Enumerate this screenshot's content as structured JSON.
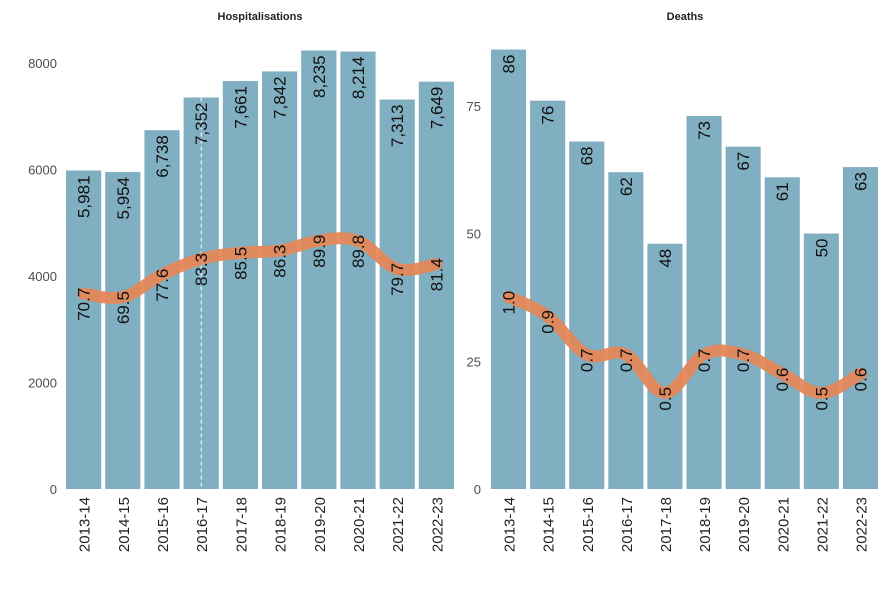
{
  "chart_data": [
    {
      "type": "bar",
      "title": "Hospitalisations",
      "categories": [
        "2013-14",
        "2014-15",
        "2015-16",
        "2016-17",
        "2017-18",
        "2018-19",
        "2019-20",
        "2020-21",
        "2021-22",
        "2022-23"
      ],
      "values": [
        5981,
        5954,
        6738,
        7352,
        7661,
        7842,
        8235,
        8214,
        7313,
        7649
      ],
      "value_labels": [
        "5,981",
        "5,954",
        "6,738",
        "7,352",
        "7,661",
        "7,842",
        "8,235",
        "8,214",
        "7,313",
        "7,649"
      ],
      "ylim": [
        0,
        8300
      ],
      "yticks": [
        0,
        2000,
        4000,
        6000,
        8000
      ],
      "line": {
        "values": [
          70.7,
          69.5,
          77.6,
          83.3,
          85.5,
          86.3,
          89.9,
          89.8,
          79.7,
          81.4
        ],
        "value_labels": [
          "70.7",
          "69.5",
          "77.6",
          "83.3",
          "85.5",
          "86.3",
          "89.9",
          "89.8",
          "79.7",
          "81.4"
        ]
      },
      "marker_category": "2016-17",
      "grid": false
    },
    {
      "type": "bar",
      "title": "Deaths",
      "categories": [
        "2013-14",
        "2014-15",
        "2015-16",
        "2016-17",
        "2017-18",
        "2018-19",
        "2019-20",
        "2020-21",
        "2021-22",
        "2022-23"
      ],
      "values": [
        86,
        76,
        68,
        62,
        48,
        73,
        67,
        61,
        50,
        63
      ],
      "value_labels": [
        "86",
        "76",
        "68",
        "62",
        "48",
        "73",
        "67",
        "61",
        "50",
        "63"
      ],
      "ylim": [
        0,
        86.5
      ],
      "yticks": [
        0,
        25,
        50,
        75
      ],
      "line": {
        "values": [
          1.0,
          0.9,
          0.7,
          0.7,
          0.5,
          0.7,
          0.7,
          0.6,
          0.5,
          0.6
        ],
        "value_labels": [
          "1.0",
          "0.9",
          "0.7",
          "0.7",
          "0.5",
          "0.7",
          "0.7",
          "0.6",
          "0.5",
          "0.6"
        ]
      },
      "grid": false
    }
  ],
  "colors": {
    "bar": "#7fafc0",
    "line": "#e5875a",
    "marker": "#ffffff"
  }
}
